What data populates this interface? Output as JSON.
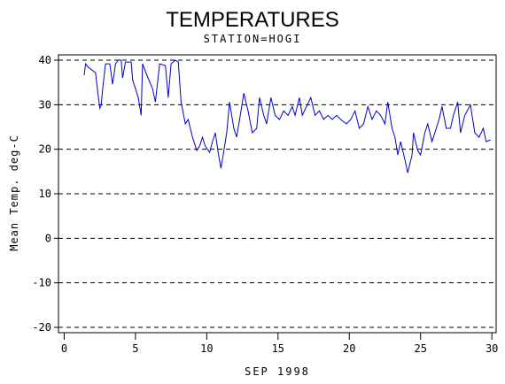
{
  "chart_data": {
    "type": "line",
    "title": "TEMPERATURES",
    "subtitle": "STATION=HOGI",
    "xlabel": "SEP 1998",
    "ylabel": "Mean Temp. deg-C",
    "xlim": [
      -0.4,
      30.3
    ],
    "ylim": [
      -21.2,
      41.2
    ],
    "xticks": [
      0,
      5,
      10,
      15,
      20,
      25,
      30
    ],
    "yticks": [
      -20,
      -10,
      0,
      10,
      20,
      30,
      40
    ],
    "grid": true,
    "series": [
      {
        "name": "Mean Temp",
        "color": "#0000cc",
        "x": [
          1.4,
          1.5,
          1.7,
          2.2,
          2.4,
          2.5,
          2.6,
          2.7,
          2.9,
          3.2,
          3.4,
          3.6,
          3.8,
          4.0,
          4.1,
          4.3,
          4.7,
          4.8,
          5.2,
          5.4,
          5.5,
          5.8,
          6.2,
          6.4,
          6.7,
          7.1,
          7.3,
          7.5,
          7.8,
          8.0,
          8.2,
          8.5,
          8.7,
          9.0,
          9.3,
          9.5,
          9.7,
          9.9,
          10.2,
          10.4,
          10.6,
          10.8,
          11.0,
          11.2,
          11.4,
          11.6,
          11.9,
          12.1,
          12.4,
          12.6,
          12.9,
          13.2,
          13.5,
          13.7,
          14.0,
          14.2,
          14.5,
          14.8,
          15.1,
          15.4,
          15.7,
          16.0,
          16.2,
          16.5,
          16.7,
          17.0,
          17.3,
          17.6,
          17.9,
          18.2,
          18.5,
          18.8,
          19.1,
          19.4,
          19.8,
          20.1,
          20.4,
          20.7,
          21.0,
          21.3,
          21.6,
          21.9,
          22.2,
          22.5,
          22.7,
          23.0,
          23.2,
          23.4,
          23.6,
          23.9,
          24.1,
          24.4,
          24.5,
          24.8,
          25.0,
          25.3,
          25.5,
          25.8,
          26.0,
          26.3,
          26.5,
          26.8,
          27.1,
          27.3,
          27.6,
          27.8,
          28.1,
          28.5,
          28.8,
          29.1,
          29.4,
          29.6,
          29.9
        ],
        "values": [
          36.6,
          39.2,
          38.4,
          37.2,
          31.6,
          29.2,
          30.0,
          33.6,
          39.2,
          39.2,
          34.6,
          39.2,
          40.0,
          40.0,
          36.0,
          39.6,
          39.6,
          35.6,
          31.6,
          27.6,
          39.2,
          36.6,
          33.6,
          30.6,
          39.2,
          38.8,
          31.6,
          39.2,
          40.0,
          39.6,
          30.6,
          25.7,
          26.7,
          22.7,
          19.7,
          20.7,
          22.7,
          20.7,
          19.3,
          21.7,
          23.7,
          19.3,
          15.7,
          19.7,
          23.7,
          30.6,
          24.7,
          22.7,
          28.6,
          32.6,
          28.6,
          23.7,
          24.7,
          31.6,
          27.6,
          25.7,
          31.6,
          27.6,
          26.7,
          28.6,
          27.6,
          29.6,
          27.6,
          31.6,
          27.6,
          29.6,
          31.6,
          27.6,
          28.6,
          26.7,
          27.6,
          26.7,
          27.6,
          26.7,
          25.7,
          26.7,
          28.6,
          24.7,
          25.7,
          29.6,
          26.7,
          28.6,
          27.6,
          25.7,
          30.6,
          24.7,
          22.7,
          18.7,
          21.7,
          17.7,
          14.7,
          18.7,
          23.7,
          19.7,
          18.7,
          23.7,
          25.7,
          21.7,
          23.7,
          26.7,
          29.6,
          24.7,
          24.7,
          27.6,
          30.6,
          23.7,
          27.6,
          30.0,
          23.7,
          22.7,
          24.7,
          21.7,
          22.1
        ]
      }
    ]
  }
}
